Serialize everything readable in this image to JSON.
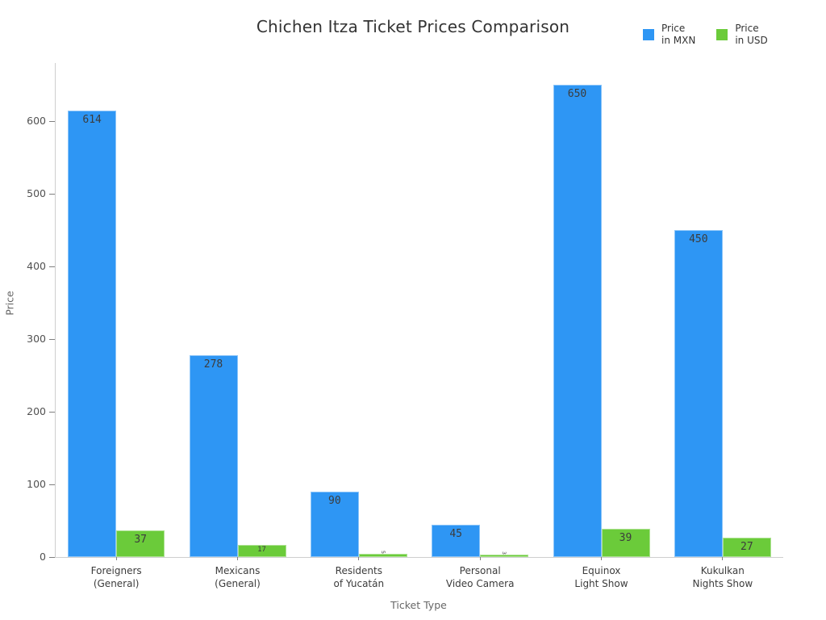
{
  "title": "Chichen Itza Ticket Prices Comparison",
  "legend": {
    "items": [
      {
        "label": "Price\nin MXN",
        "color": "#2E96F4"
      },
      {
        "label": "Price\nin USD",
        "color": "#6BCB3A"
      }
    ]
  },
  "axes": {
    "xlabel": "Ticket Type",
    "ylabel": "Price",
    "yticks": [
      0,
      100,
      200,
      300,
      400,
      500,
      600
    ]
  },
  "chart_data": {
    "type": "bar",
    "title": "Chichen Itza Ticket Prices Comparison",
    "xlabel": "Ticket Type",
    "ylabel": "Price",
    "categories": [
      "Foreigners\n(General)",
      "Mexicans\n(General)",
      "Residents\nof Yucatán",
      "Personal\nVideo Camera",
      "Equinox\nLight Show",
      "Kukulkan\nNights Show"
    ],
    "series": [
      {
        "name": "Price in MXN",
        "color": "#2E96F4",
        "values": [
          614,
          278,
          90,
          45,
          650,
          450
        ]
      },
      {
        "name": "Price in USD",
        "color": "#6BCB3A",
        "values": [
          37,
          17,
          5,
          3,
          39,
          27
        ]
      }
    ],
    "ylim": [
      0,
      680
    ],
    "grid": false,
    "legend_position": "top-right",
    "bar_value_labels": true
  }
}
